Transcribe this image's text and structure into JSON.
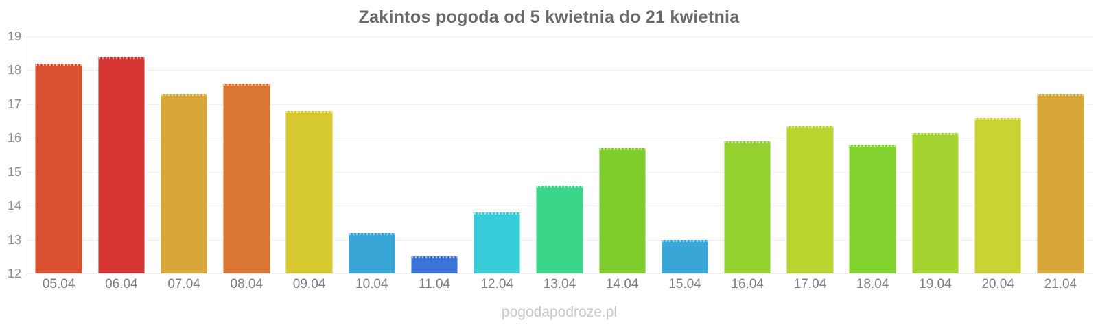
{
  "chart_data": {
    "type": "bar",
    "title": "Zakintos pogoda od 5 kwietnia do 21 kwietnia",
    "categories": [
      "05.04",
      "06.04",
      "07.04",
      "08.04",
      "09.04",
      "10.04",
      "11.04",
      "12.04",
      "13.04",
      "14.04",
      "15.04",
      "16.04",
      "17.04",
      "18.04",
      "19.04",
      "20.04",
      "21.04"
    ],
    "values": [
      18.2,
      18.4,
      17.3,
      17.6,
      16.8,
      13.2,
      12.5,
      13.8,
      14.6,
      15.7,
      13.0,
      15.9,
      16.35,
      15.8,
      16.15,
      16.6,
      17.3
    ],
    "bar_colors": [
      "#d9512e",
      "#d63531",
      "#d7a739",
      "#da7533",
      "#d5c92f",
      "#38a7d8",
      "#3b74d8",
      "#38cbd8",
      "#3bd689",
      "#7ecd2d",
      "#38a7d8",
      "#93d22e",
      "#bad32f",
      "#82d22e",
      "#a4d42f",
      "#c9d434",
      "#d7a739"
    ],
    "xlabel": "",
    "ylabel": "",
    "ylim": [
      12,
      19
    ],
    "yticks": [
      19,
      18,
      17,
      16,
      15,
      14,
      13,
      12
    ],
    "grid": true,
    "legend_position": "none"
  },
  "watermark": "pogodapodroze.pl",
  "colors": {
    "title": "#68696b",
    "y_tick_label": "#8b8b8b",
    "x_tick_label": "#7d7d7d",
    "gridline": "#e5e5e5",
    "axis_line": "#cccccc",
    "watermark": "#c9c9c9",
    "background": "#ffffff"
  }
}
